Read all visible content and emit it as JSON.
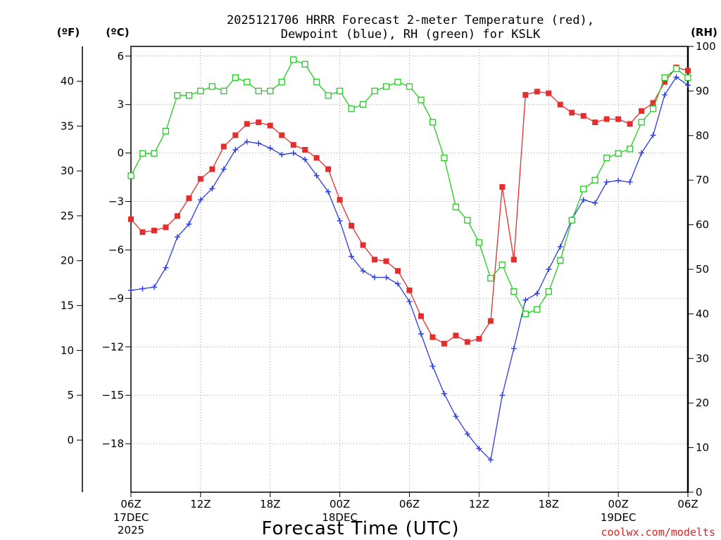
{
  "chart_data": {
    "type": "line",
    "title_line1": "2025121706 HRRR Forecast 2-meter Temperature (red),",
    "title_line2": "Dewpoint (blue), RH (green) for KSLK",
    "xlabel": "Forecast Time (UTC)",
    "credit": "coolwx.com/modelts",
    "credit_color": "#dd2222",
    "unit_f": "(ºF)",
    "unit_c": "(ºC)",
    "unit_rh": "(RH)",
    "x_range_hours": [
      0,
      48
    ],
    "x_ticks": [
      {
        "hour": 0,
        "label": "06Z",
        "date": "17DEC",
        "year": "2025"
      },
      {
        "hour": 6,
        "label": "12Z",
        "date": "",
        "year": ""
      },
      {
        "hour": 12,
        "label": "18Z",
        "date": "",
        "year": ""
      },
      {
        "hour": 18,
        "label": "00Z",
        "date": "18DEC",
        "year": ""
      },
      {
        "hour": 24,
        "label": "06Z",
        "date": "",
        "year": ""
      },
      {
        "hour": 30,
        "label": "12Z",
        "date": "",
        "year": ""
      },
      {
        "hour": 36,
        "label": "18Z",
        "date": "",
        "year": ""
      },
      {
        "hour": 42,
        "label": "00Z",
        "date": "19DEC",
        "year": ""
      },
      {
        "hour": 48,
        "label": "06Z",
        "date": "",
        "year": ""
      }
    ],
    "celsius_range": [
      -21,
      6.6
    ],
    "celsius_ticks": [
      6,
      3,
      0,
      -3,
      -6,
      -9,
      -12,
      -15,
      -18
    ],
    "fahrenheit_ticks": [
      40,
      35,
      30,
      25,
      20,
      15,
      10,
      5,
      0
    ],
    "rh_range": [
      0,
      100
    ],
    "rh_ticks": [
      100,
      90,
      80,
      70,
      60,
      50,
      40,
      30,
      20,
      10,
      0
    ],
    "hours": [
      0,
      1,
      2,
      3,
      4,
      5,
      6,
      7,
      8,
      9,
      10,
      11,
      12,
      13,
      14,
      15,
      16,
      17,
      18,
      19,
      20,
      21,
      22,
      23,
      24,
      25,
      26,
      27,
      28,
      29,
      30,
      31,
      32,
      33,
      34,
      35,
      36,
      37,
      38,
      39,
      40,
      41,
      42,
      43,
      44,
      45,
      46,
      47,
      48
    ],
    "series": [
      {
        "name": "Temperature",
        "unit": "C",
        "color": "#e52d2d",
        "marker": "filled-square",
        "values": [
          -4.1,
          -4.9,
          -4.8,
          -4.6,
          -3.9,
          -2.8,
          -1.6,
          -1.0,
          0.4,
          1.1,
          1.8,
          1.9,
          1.7,
          1.1,
          0.5,
          0.2,
          -0.3,
          -1.0,
          -2.9,
          -4.5,
          -5.7,
          -6.6,
          -6.7,
          -7.3,
          -8.5,
          -10.1,
          -11.4,
          -11.8,
          -11.3,
          -11.7,
          -11.5,
          -10.4,
          -2.1,
          -6.6,
          3.6,
          3.8,
          3.7,
          3.0,
          2.5,
          2.3,
          1.9,
          2.1,
          2.1,
          1.8,
          2.6,
          3.1,
          4.4,
          5.3,
          5.1
        ]
      },
      {
        "name": "Dewpoint",
        "unit": "C",
        "color": "#2b3ce0",
        "marker": "plus",
        "values": [
          -8.5,
          -8.4,
          -8.3,
          -7.1,
          -5.2,
          -4.4,
          -2.9,
          -2.2,
          -1.0,
          0.2,
          0.7,
          0.6,
          0.3,
          -0.1,
          0.0,
          -0.4,
          -1.4,
          -2.4,
          -4.2,
          -6.4,
          -7.3,
          -7.7,
          -7.7,
          -8.1,
          -9.2,
          -11.2,
          -13.2,
          -14.9,
          -16.3,
          -17.4,
          -18.3,
          -19.0,
          -15.0,
          -12.1,
          -9.1,
          -8.7,
          -7.2,
          -5.8,
          -4.1,
          -2.9,
          -3.1,
          -1.8,
          -1.7,
          -1.8,
          0.0,
          1.1,
          3.6,
          4.7,
          4.2
        ]
      },
      {
        "name": "RH",
        "unit": "%",
        "color": "#22cc22",
        "marker": "open-square",
        "values": [
          71,
          76,
          76,
          81,
          89,
          89,
          90,
          91,
          90,
          93,
          92,
          90,
          90,
          92,
          97,
          96,
          92,
          89,
          90,
          86,
          87,
          90,
          91,
          92,
          91,
          88,
          83,
          75,
          64,
          61,
          56,
          48,
          51,
          45,
          40,
          41,
          45,
          52,
          61,
          68,
          70,
          75,
          76,
          77,
          83,
          86,
          93,
          95,
          93
        ]
      }
    ]
  }
}
